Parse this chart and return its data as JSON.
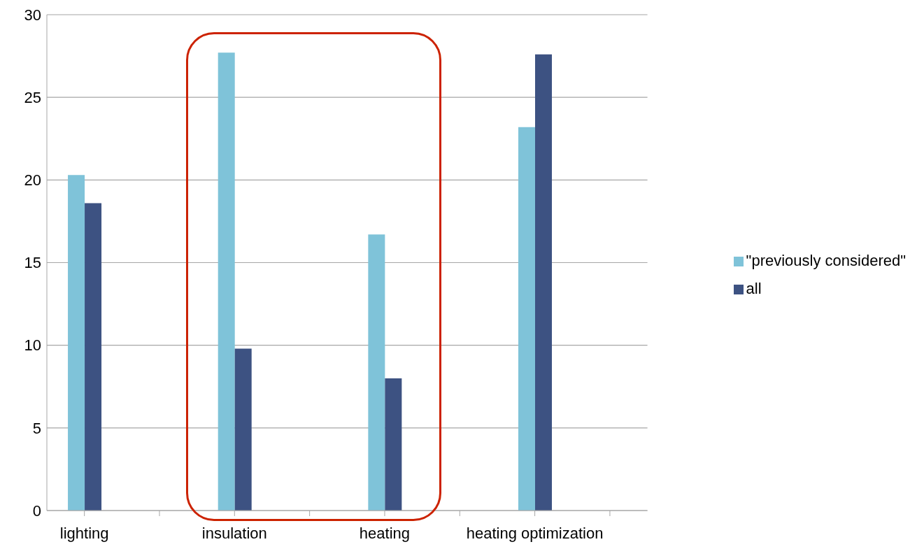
{
  "chart_data": {
    "type": "bar",
    "categories": [
      "lighting",
      null,
      "insulation",
      null,
      "heating",
      null,
      "heating optimization",
      null
    ],
    "series": [
      {
        "name": "\"previously considered\"",
        "color": "#7fc3d9",
        "values": [
          20.3,
          null,
          27.7,
          null,
          16.7,
          null,
          23.2,
          null
        ]
      },
      {
        "name": "all",
        "color": "#3d5282",
        "values": [
          18.6,
          null,
          9.8,
          null,
          8.0,
          null,
          27.6,
          null
        ]
      }
    ],
    "ylim": [
      0,
      30
    ],
    "yticks": [
      0,
      5,
      10,
      15,
      20,
      25,
      30
    ],
    "grid": "y",
    "legend": "right"
  }
}
